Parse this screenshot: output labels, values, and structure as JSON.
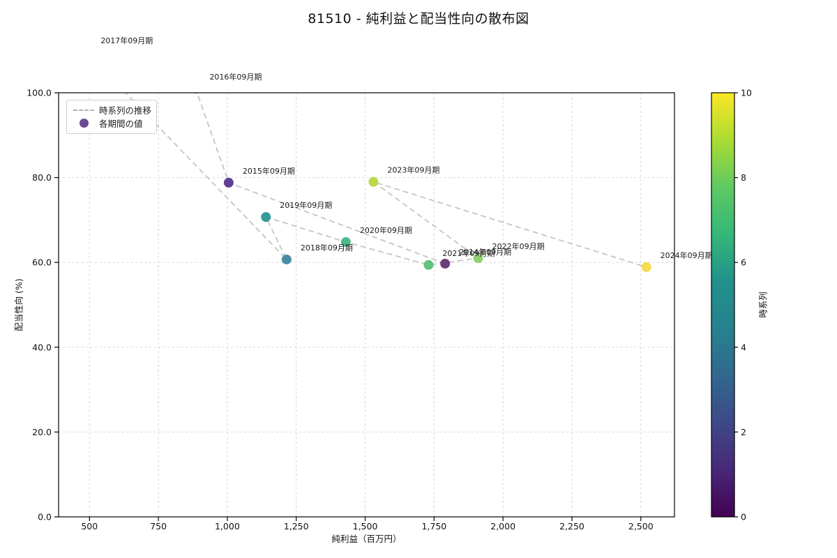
{
  "title": "81510 - 純利益と配当性向の散布図",
  "legend": {
    "line_label": "時系列の推移",
    "marker_label": "各期間の値"
  },
  "axes": {
    "x_label": "純利益（百万円）",
    "y_label": "配当性向 (%)",
    "x_ticks": [
      "500",
      "750",
      "1,000",
      "1,250",
      "1,500",
      "1,750",
      "2,000",
      "2,250",
      "2,500"
    ],
    "x_tick_values": [
      500,
      750,
      1000,
      1250,
      1500,
      1750,
      2000,
      2250,
      2500
    ],
    "y_ticks": [
      "0.0",
      "20.0",
      "40.0",
      "60.0",
      "80.0",
      "100.0"
    ],
    "y_tick_values": [
      0,
      20,
      40,
      60,
      80,
      100
    ],
    "xlim": [
      388,
      2622
    ],
    "ylim": [
      0,
      100
    ],
    "grid": true
  },
  "colorbar": {
    "label": "時系列",
    "ticks": [
      "0",
      "2",
      "4",
      "6",
      "8",
      "10"
    ],
    "tick_values": [
      0,
      2,
      4,
      6,
      8,
      10
    ],
    "range": [
      0,
      10
    ],
    "colors": [
      "#440154",
      "#482878",
      "#3e4989",
      "#31688e",
      "#26828e",
      "#21918c",
      "#35b779",
      "#5ec962",
      "#aadc32",
      "#fde725"
    ]
  },
  "chart_data": {
    "type": "scatter",
    "title": "81510 - 純利益と配当性向の散布図",
    "xlabel": "純利益（百万円）",
    "ylabel": "配当性向 (%)",
    "color_label": "時系列",
    "trajectory_color": "#c2c2c2",
    "grid_color": "#d0d0d0",
    "points": [
      {
        "label": "2014年09月期",
        "x": 1790,
        "y": 59.7,
        "t": 0,
        "color": "#6b3d7a"
      },
      {
        "label": "2015年09月期",
        "x": 1005,
        "y": 78.8,
        "t": 1,
        "color": "#5f4096"
      },
      {
        "label": "2016年09月期",
        "x": 885,
        "y": 101.0,
        "t": 2,
        "color": "#50619b"
      },
      {
        "label": "2017年09月期",
        "x": 490,
        "y": 109.5,
        "t": 3,
        "color": "#47789f"
      },
      {
        "label": "2018年09月期",
        "x": 1215,
        "y": 60.7,
        "t": 4,
        "color": "#4a8ea6"
      },
      {
        "label": "2019年09月期",
        "x": 1140,
        "y": 70.7,
        "t": 5,
        "color": "#379b95"
      },
      {
        "label": "2020年09月期",
        "x": 1430,
        "y": 64.8,
        "t": 6,
        "color": "#4cba8b"
      },
      {
        "label": "2021年09月期",
        "x": 1730,
        "y": 59.4,
        "t": 7,
        "color": "#60c47e"
      },
      {
        "label": "2022年09月期",
        "x": 1910,
        "y": 61.0,
        "t": 8,
        "color": "#8fd175"
      },
      {
        "label": "2023年09月期",
        "x": 1530,
        "y": 79.0,
        "t": 9,
        "color": "#bcd94a"
      },
      {
        "label": "2024年09月期",
        "x": 2520,
        "y": 58.9,
        "t": 10,
        "color": "#f4dc4e"
      }
    ]
  }
}
